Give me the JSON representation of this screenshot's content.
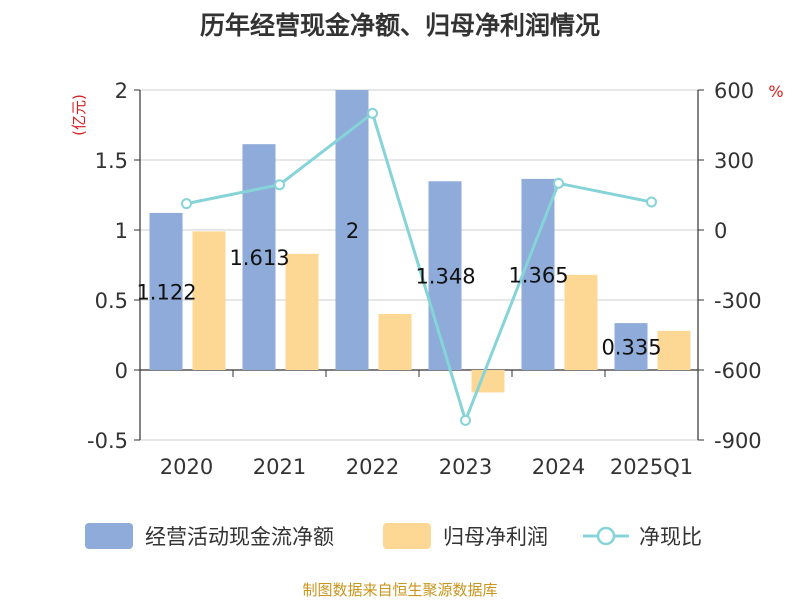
{
  "title": "历年经营现金净额、归母净利润情况",
  "source": "制图数据来自恒生聚源数据库",
  "chart_data": {
    "type": "bar",
    "categories": [
      "2020",
      "2021",
      "2022",
      "2023",
      "2024",
      "2025Q1"
    ],
    "ylabel_left": "(亿元)",
    "ylabel_right": "%",
    "ylim_left": [
      -0.5,
      2
    ],
    "yticks_left": [
      "2",
      "1.5",
      "1",
      "0.5",
      "0",
      "-0.5"
    ],
    "ylim_right": [
      -900,
      600
    ],
    "yticks_right": [
      "600",
      "300",
      "0",
      "-300",
      "-600",
      "-900"
    ],
    "series": [
      {
        "name": "经营活动现金流净额",
        "type": "bar",
        "axis": "left",
        "color": "#8eabd9",
        "values": [
          1.122,
          1.613,
          2,
          1.348,
          1.365,
          0.335
        ],
        "labels": [
          "1.122",
          "1.613",
          "2",
          "1.348",
          "1.365",
          "0.335"
        ]
      },
      {
        "name": "归母净利润",
        "type": "bar",
        "axis": "left",
        "color": "#fdd895",
        "values": [
          0.99,
          0.83,
          0.4,
          -0.16,
          0.68,
          0.28
        ]
      },
      {
        "name": "净现比",
        "type": "line",
        "axis": "right",
        "color": "#86d4d8",
        "values": [
          113,
          194,
          500,
          -816,
          200,
          120
        ]
      }
    ],
    "legend_position": "bottom",
    "grid": true
  }
}
